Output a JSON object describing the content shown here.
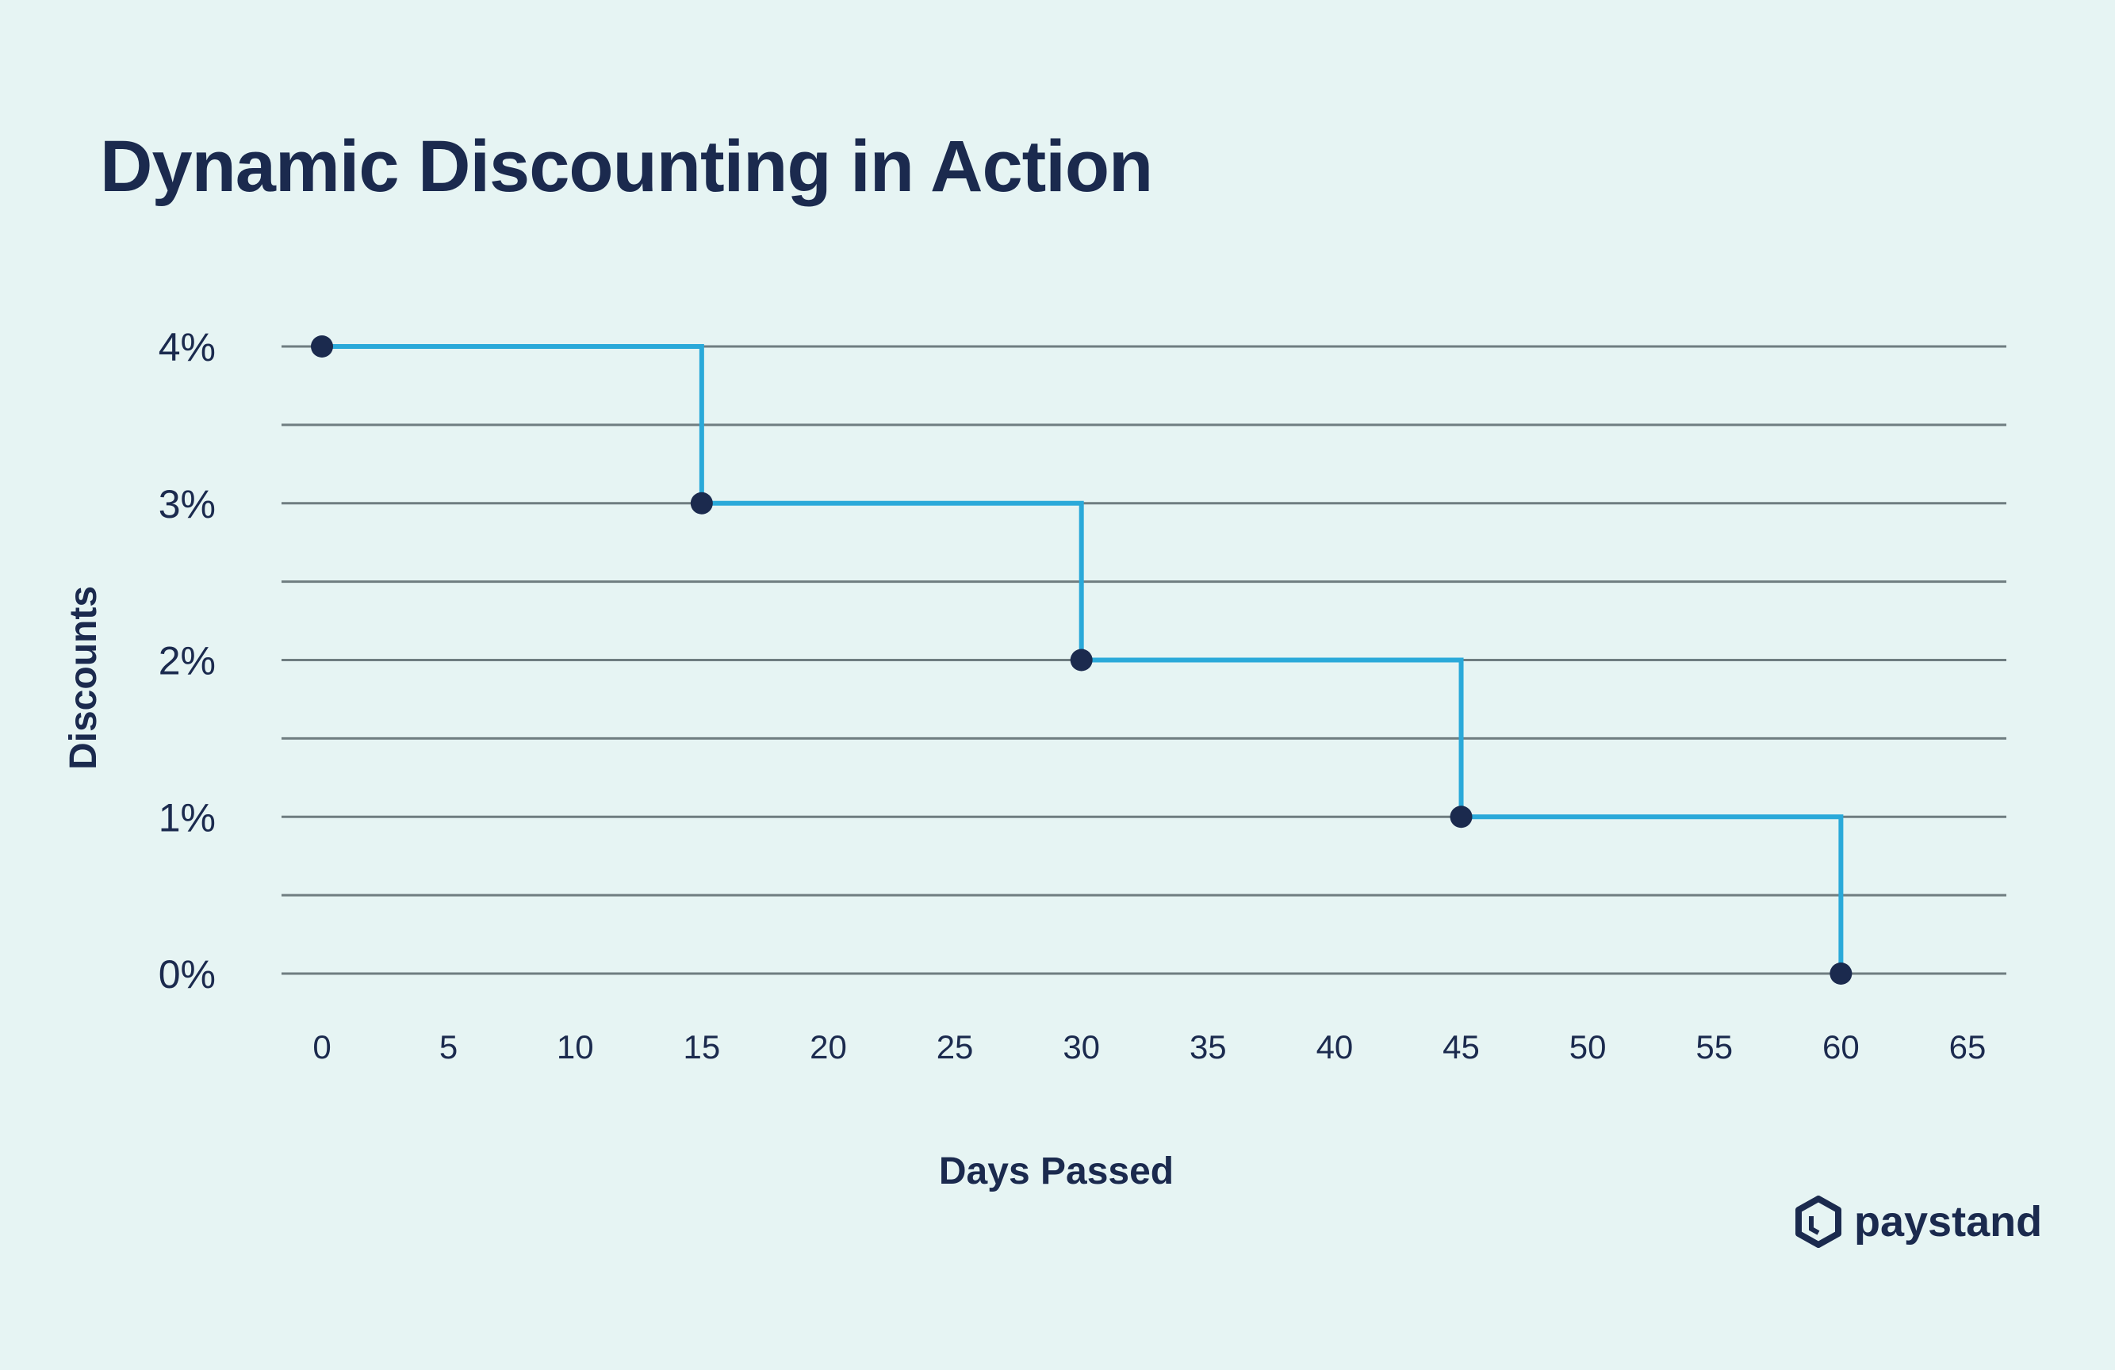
{
  "title": "Dynamic Discounting in Action",
  "brand": {
    "name": "paystand",
    "icon": "paystand-logo-icon"
  },
  "colors": {
    "background": "#e6f4f3",
    "line": "#2aa9d9",
    "point": "#1b2a4e",
    "grid": "#6f7d80",
    "text": "#1b2a4e"
  },
  "chart_data": {
    "type": "line",
    "step": true,
    "title": "Dynamic Discounting in Action",
    "xlabel": "Days Passed",
    "ylabel": "Discounts",
    "xlim": [
      0,
      65
    ],
    "ylim": [
      0,
      4
    ],
    "x_ticks": [
      "0",
      "5",
      "10",
      "15",
      "20",
      "25",
      "30",
      "35",
      "40",
      "45",
      "50",
      "55",
      "60",
      "65"
    ],
    "y_ticks": [
      "0%",
      "1%",
      "2%",
      "3%",
      "4%"
    ],
    "grid": true,
    "legend": "none",
    "series": [
      {
        "x": [
          0,
          15,
          30,
          45,
          60
        ],
        "y": [
          4,
          3,
          2,
          1,
          0
        ]
      }
    ]
  }
}
